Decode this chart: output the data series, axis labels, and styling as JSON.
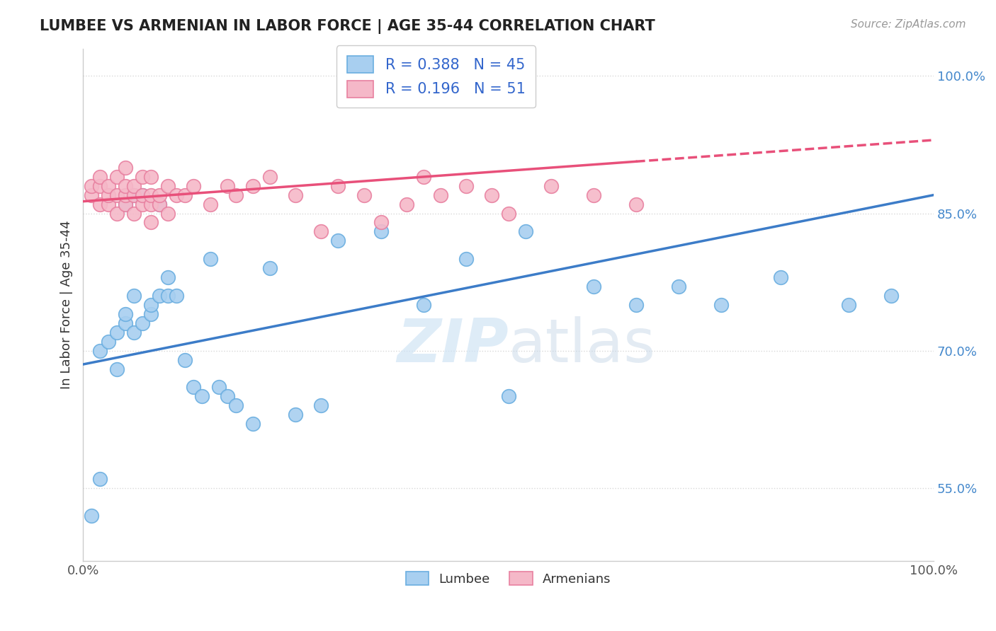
{
  "title": "LUMBEE VS ARMENIAN IN LABOR FORCE | AGE 35-44 CORRELATION CHART",
  "source_text": "Source: ZipAtlas.com",
  "ylabel_text": "In Labor Force | Age 35-44",
  "xlim": [
    0.0,
    1.0
  ],
  "ylim": [
    0.47,
    1.03
  ],
  "ytick_positions": [
    0.55,
    0.7,
    0.85,
    1.0
  ],
  "yticklabels": [
    "55.0%",
    "70.0%",
    "85.0%",
    "100.0%"
  ],
  "legend_r_blue": "R = 0.388",
  "legend_n_blue": "N = 45",
  "legend_r_pink": "R = 0.196",
  "legend_n_pink": "N = 51",
  "lumbee_color": "#a8cff0",
  "armenian_color": "#f5b8c8",
  "lumbee_edge_color": "#6aaee0",
  "armenian_edge_color": "#e880a0",
  "trend_blue": "#3c7cc8",
  "trend_pink": "#e8507a",
  "watermark_color": "#d0e4f5",
  "background_color": "#ffffff",
  "grid_color": "#d8d8d8",
  "lumbee_x": [
    0.01,
    0.02,
    0.02,
    0.03,
    0.04,
    0.04,
    0.05,
    0.05,
    0.05,
    0.06,
    0.06,
    0.06,
    0.07,
    0.07,
    0.08,
    0.08,
    0.09,
    0.09,
    0.1,
    0.1,
    0.11,
    0.12,
    0.13,
    0.14,
    0.15,
    0.16,
    0.17,
    0.18,
    0.2,
    0.22,
    0.25,
    0.28,
    0.3,
    0.35,
    0.4,
    0.45,
    0.5,
    0.52,
    0.6,
    0.65,
    0.7,
    0.75,
    0.82,
    0.9,
    0.95
  ],
  "lumbee_y": [
    0.52,
    0.56,
    0.7,
    0.71,
    0.68,
    0.72,
    0.73,
    0.74,
    0.86,
    0.72,
    0.76,
    0.87,
    0.73,
    0.87,
    0.74,
    0.75,
    0.76,
    0.86,
    0.76,
    0.78,
    0.76,
    0.69,
    0.66,
    0.65,
    0.8,
    0.66,
    0.65,
    0.64,
    0.62,
    0.79,
    0.63,
    0.64,
    0.82,
    0.83,
    0.75,
    0.8,
    0.65,
    0.83,
    0.77,
    0.75,
    0.77,
    0.75,
    0.78,
    0.75,
    0.76
  ],
  "armenian_x": [
    0.01,
    0.01,
    0.02,
    0.02,
    0.02,
    0.03,
    0.03,
    0.03,
    0.04,
    0.04,
    0.04,
    0.05,
    0.05,
    0.05,
    0.05,
    0.06,
    0.06,
    0.06,
    0.07,
    0.07,
    0.07,
    0.08,
    0.08,
    0.08,
    0.08,
    0.09,
    0.09,
    0.1,
    0.1,
    0.11,
    0.12,
    0.13,
    0.15,
    0.17,
    0.18,
    0.2,
    0.22,
    0.25,
    0.28,
    0.3,
    0.33,
    0.35,
    0.38,
    0.4,
    0.42,
    0.45,
    0.48,
    0.5,
    0.55,
    0.6,
    0.65
  ],
  "armenian_y": [
    0.87,
    0.88,
    0.86,
    0.88,
    0.89,
    0.86,
    0.87,
    0.88,
    0.85,
    0.87,
    0.89,
    0.86,
    0.87,
    0.88,
    0.9,
    0.85,
    0.87,
    0.88,
    0.86,
    0.87,
    0.89,
    0.84,
    0.86,
    0.87,
    0.89,
    0.86,
    0.87,
    0.85,
    0.88,
    0.87,
    0.87,
    0.88,
    0.86,
    0.88,
    0.87,
    0.88,
    0.89,
    0.87,
    0.83,
    0.88,
    0.87,
    0.84,
    0.86,
    0.89,
    0.87,
    0.88,
    0.87,
    0.85,
    0.88,
    0.87,
    0.86
  ],
  "blue_trend_x0": 0.0,
  "blue_trend_y0": 0.685,
  "blue_trend_x1": 1.0,
  "blue_trend_y1": 0.87,
  "pink_trend_x0": 0.0,
  "pink_trend_y0": 0.863,
  "pink_trend_x1": 1.0,
  "pink_trend_y1": 0.93
}
